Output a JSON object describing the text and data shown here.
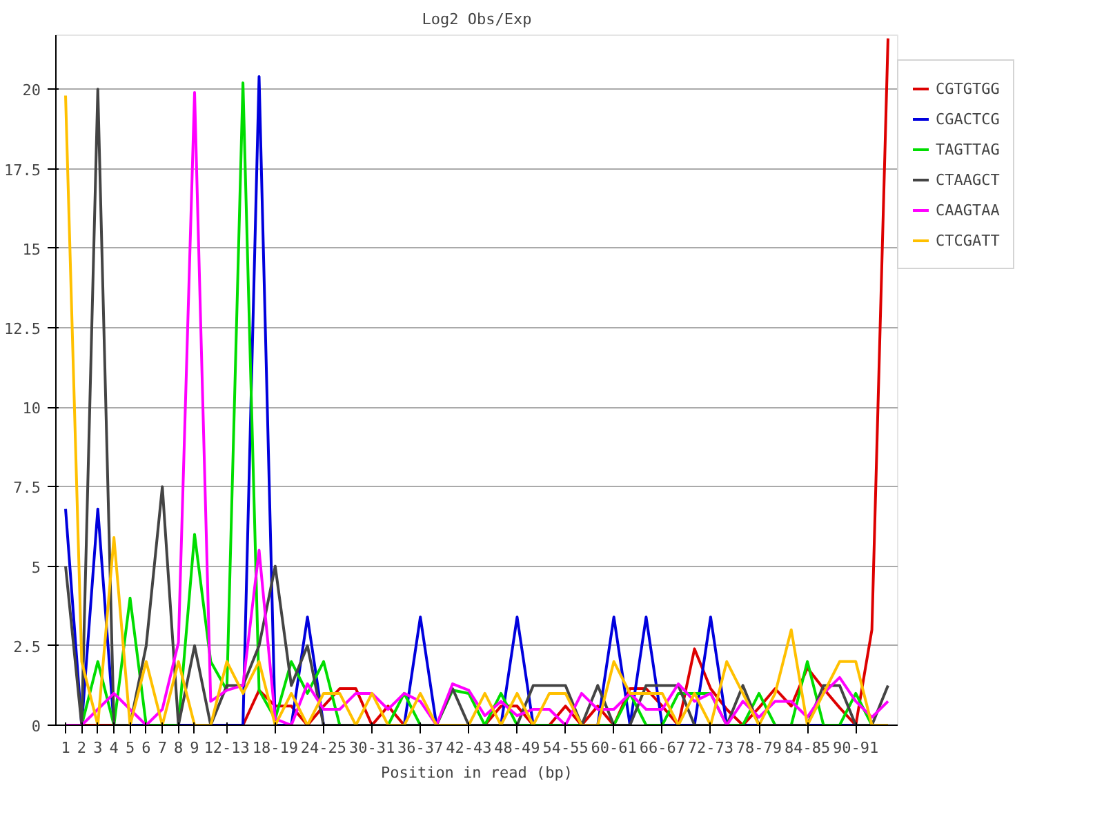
{
  "chart_data": {
    "type": "line",
    "title": "Log2 Obs/Exp",
    "xlabel": "Position in read (bp)",
    "categories": [
      "1",
      "2",
      "3",
      "4",
      "5",
      "6",
      "7",
      "8",
      "9",
      null,
      "12-13",
      null,
      null,
      "18-19",
      null,
      null,
      "24-25",
      null,
      null,
      "30-31",
      null,
      null,
      "36-37",
      null,
      null,
      "42-43",
      null,
      null,
      "48-49",
      null,
      null,
      "54-55",
      null,
      null,
      "60-61",
      null,
      null,
      "66-67",
      null,
      null,
      "72-73",
      null,
      null,
      "78-79",
      null,
      null,
      "84-85",
      null,
      null,
      "90-91",
      null,
      null
    ],
    "series": [
      {
        "name": "CGTGTGG",
        "color": "#dd0000",
        "values": [
          0,
          0,
          0,
          0,
          0,
          0,
          0,
          0,
          0,
          0,
          0,
          0,
          1.1,
          0.6,
          0.6,
          0,
          0.6,
          1.15,
          1.15,
          0,
          0.6,
          0,
          0,
          0,
          0,
          0,
          0,
          0.6,
          0.6,
          0,
          0,
          0.6,
          0,
          0.6,
          0,
          1.15,
          1.15,
          0.6,
          0,
          2.4,
          1.15,
          0.5,
          0,
          0.55,
          1.15,
          0.6,
          1.8,
          1.15,
          0.55,
          0,
          3.0,
          21.6
        ]
      },
      {
        "name": "CGACTCG",
        "color": "#0000dd",
        "values": [
          6.8,
          0,
          6.8,
          0,
          0,
          0,
          0,
          0,
          0,
          0,
          0,
          0,
          20.4,
          0,
          0,
          3.4,
          0,
          0,
          0,
          0,
          0,
          0,
          3.4,
          0,
          0,
          0,
          0,
          0,
          3.4,
          0,
          0,
          0,
          0,
          0,
          3.4,
          0,
          3.4,
          0,
          0,
          0,
          3.4,
          0,
          0,
          0,
          0,
          0,
          0,
          0,
          0,
          0,
          0,
          0
        ]
      },
      {
        "name": "TAGTTAG",
        "color": "#00dd00",
        "values": [
          0,
          0,
          2,
          0,
          4,
          0,
          0,
          0,
          6,
          2,
          1.1,
          20.2,
          1.1,
          0.2,
          2,
          1,
          2,
          0,
          0,
          0,
          0,
          1,
          0,
          0,
          1.1,
          1,
          0,
          1,
          0,
          0,
          0,
          0,
          0,
          0,
          0,
          1,
          0,
          0,
          1,
          1,
          1,
          0,
          0,
          1,
          0,
          0,
          2,
          0,
          0,
          1,
          0,
          0
        ]
      },
      {
        "name": "CTAAGCT",
        "color": "#444444",
        "values": [
          5,
          0,
          20,
          0,
          0,
          2.5,
          7.5,
          0,
          2.5,
          0,
          1.25,
          1.25,
          2.5,
          5,
          1.25,
          2.5,
          0,
          0,
          0,
          0,
          0,
          0,
          0,
          0,
          1.15,
          0,
          0,
          0,
          0,
          1.25,
          1.25,
          1.25,
          0,
          1.25,
          0,
          0,
          1.25,
          1.25,
          1.25,
          0,
          0,
          0,
          1.25,
          0,
          0,
          0,
          0,
          1.25,
          1.25,
          0,
          0,
          1.25
        ]
      },
      {
        "name": "CAAGTAA",
        "color": "#ff00ff",
        "values": [
          0,
          0,
          0.5,
          1,
          0.5,
          0,
          0.5,
          2.6,
          19.9,
          0.75,
          1.1,
          1.25,
          5.5,
          0.2,
          0,
          1.3,
          0.5,
          0.5,
          1,
          1,
          0.5,
          1,
          0.75,
          0,
          1.3,
          1.1,
          0.3,
          0.75,
          0.3,
          0.5,
          0.5,
          0,
          1,
          0.5,
          0.5,
          1,
          0.5,
          0.5,
          1.3,
          0.75,
          1,
          0,
          0.75,
          0.25,
          0.75,
          0.75,
          0.25,
          1,
          1.5,
          0.75,
          0.25,
          0.75
        ]
      },
      {
        "name": "CTCGATT",
        "color": "#ffc000",
        "values": [
          19.8,
          2,
          0,
          5.9,
          0,
          2,
          0,
          2,
          0,
          0,
          2,
          1,
          2,
          0,
          1,
          0,
          1,
          1,
          0,
          1,
          0,
          0,
          1,
          0,
          0,
          0,
          1,
          0,
          1,
          0,
          1,
          1,
          0,
          0,
          2,
          1,
          1,
          1,
          0,
          1,
          0,
          2,
          1,
          0,
          1,
          3,
          0,
          1,
          2,
          2,
          0,
          0
        ]
      }
    ],
    "ylim": [
      0,
      21.7
    ],
    "yticks": [
      0,
      2.5,
      5,
      7.5,
      10,
      12.5,
      15,
      17.5,
      20
    ],
    "grid": "y",
    "legend": "top right",
    "marker": "none",
    "line_style": "solid"
  }
}
